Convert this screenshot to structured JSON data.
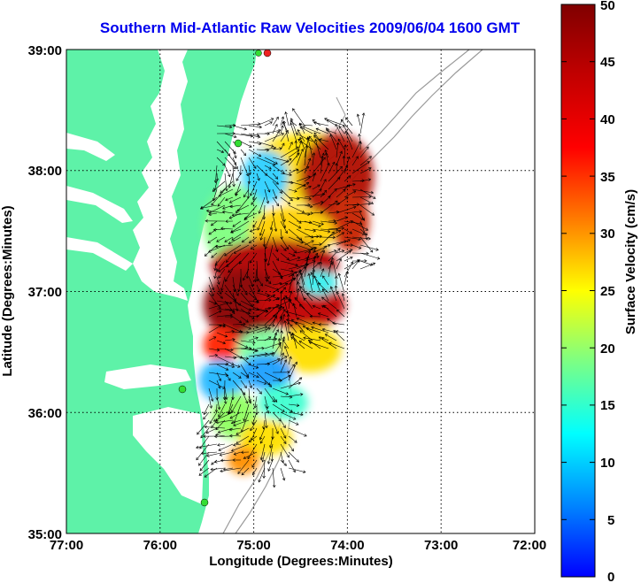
{
  "title": "Southern Mid-Atlantic Raw Velocities 2009/06/04 1600 GMT",
  "map": {
    "lon_range": [
      -77.0,
      -72.0
    ],
    "lat_range": [
      35.0,
      39.0
    ],
    "x_ticks": [
      "77:00",
      "76:00",
      "75:00",
      "74:00",
      "73:00",
      "72:00"
    ],
    "y_ticks": [
      "39:00",
      "38:00",
      "37:00",
      "36:00",
      "35:00"
    ],
    "xlabel": "Longitude (Degrees:Minutes)",
    "ylabel": "Latitude (Degrees:Minutes)",
    "grid": "dotted",
    "land_color": "#5ef2a8",
    "station_color": "#33dd33",
    "station_active_color": "#ee2222"
  },
  "colorbar": {
    "label": "Surface Velocity (cm/s)",
    "min": 0,
    "max": 50,
    "ticks": [
      "50",
      "45",
      "40",
      "35",
      "30",
      "25",
      "20",
      "15",
      "10",
      "5",
      "0"
    ]
  }
}
